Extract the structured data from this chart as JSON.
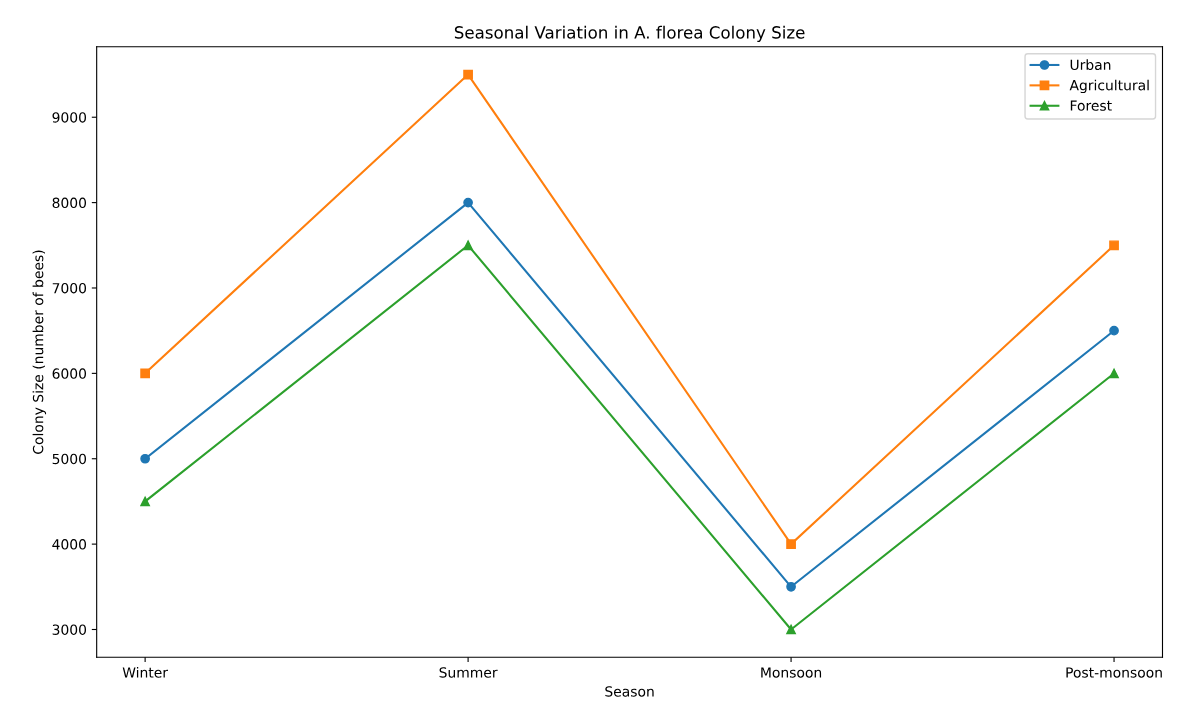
{
  "chart_data": {
    "type": "line",
    "title": "Seasonal Variation in A. florea Colony Size",
    "xlabel": "Season",
    "ylabel": "Colony Size (number of bees)",
    "categories": [
      "Winter",
      "Summer",
      "Monsoon",
      "Post-monsoon"
    ],
    "series": [
      {
        "name": "Urban",
        "color": "#1f77b4",
        "marker": "circle",
        "values": [
          5000,
          8000,
          3500,
          6500
        ]
      },
      {
        "name": "Agricultural",
        "color": "#ff7f0e",
        "marker": "square",
        "values": [
          6000,
          9500,
          4000,
          7500
        ]
      },
      {
        "name": "Forest",
        "color": "#2ca02c",
        "marker": "triangle",
        "values": [
          4500,
          7500,
          3000,
          6000
        ]
      }
    ],
    "ylim": [
      2675,
      9825
    ],
    "yticks": [
      3000,
      4000,
      5000,
      6000,
      7000,
      8000,
      9000
    ],
    "grid": false,
    "legend": "top right",
    "line_style": "solid"
  }
}
